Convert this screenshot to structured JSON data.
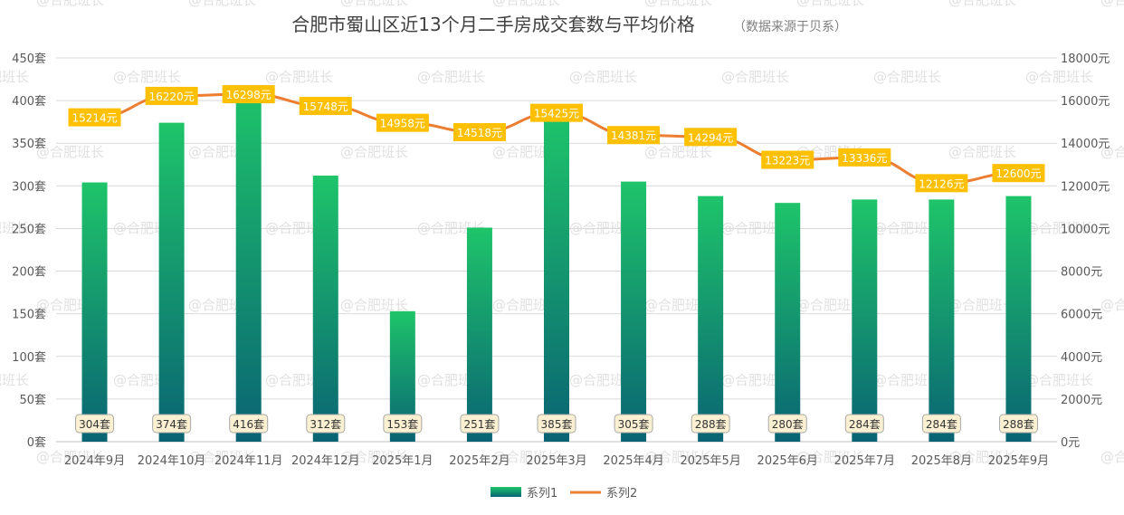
{
  "chart_data": {
    "type": "bar+line",
    "title": "合肥市蜀山区近13个月二手房成交套数与平均价格",
    "subtitle": "（数据来源于贝系）",
    "watermark": "@合肥班长",
    "categories": [
      "2024年9月",
      "2024年10月",
      "2024年11月",
      "2024年12月",
      "2025年1月",
      "2025年2月",
      "2025年3月",
      "2025年4月",
      "2025年5月",
      "2025年6月",
      "2025年7月",
      "2025年8月",
      "2025年9月"
    ],
    "series": [
      {
        "name": "系列1",
        "type": "bar",
        "axis": "left",
        "unit": "套",
        "values": [
          304,
          374,
          416,
          312,
          153,
          251,
          385,
          305,
          288,
          280,
          284,
          284,
          288
        ],
        "color_top": "#1ec46a",
        "color_bottom": "#0a6373"
      },
      {
        "name": "系列2",
        "type": "line",
        "axis": "right",
        "unit": "元",
        "values": [
          15214,
          16220,
          16298,
          15748,
          14958,
          14518,
          15425,
          14381,
          14294,
          13223,
          13336,
          12126,
          12600
        ],
        "color": "#ed7d31",
        "label_bg": "#ffc000"
      }
    ],
    "y_left": {
      "min": 0,
      "max": 450,
      "step": 50,
      "unit": "套"
    },
    "y_right": {
      "min": 0,
      "max": 18000,
      "step": 2000,
      "unit": "元"
    },
    "legend_position": "bottom-center",
    "grid": true
  }
}
